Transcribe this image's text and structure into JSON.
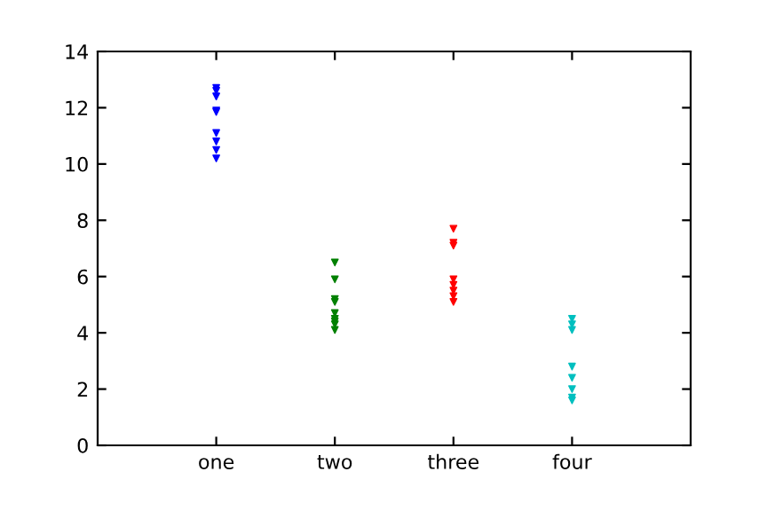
{
  "chart_data": {
    "type": "scatter",
    "categories": [
      "one",
      "two",
      "three",
      "four"
    ],
    "ylim": [
      0,
      14
    ],
    "yticks": [
      0,
      2,
      4,
      6,
      8,
      10,
      12,
      14
    ],
    "marker": "triangle",
    "grid": false,
    "series": [
      {
        "color": "#0000ff",
        "x": [
          "one",
          "one",
          "one",
          "one",
          "one",
          "one",
          "one",
          "one",
          "one"
        ],
        "values": [
          12.7,
          12.6,
          12.4,
          11.9,
          11.85,
          11.1,
          10.8,
          10.5,
          10.2
        ]
      },
      {
        "color": "#008000",
        "x": [
          "two",
          "two",
          "two",
          "two",
          "two",
          "two",
          "two",
          "two",
          "two"
        ],
        "values": [
          6.5,
          5.9,
          5.2,
          5.1,
          4.7,
          4.5,
          4.4,
          4.3,
          4.1
        ]
      },
      {
        "color": "#ff0000",
        "x": [
          "three",
          "three",
          "three",
          "three",
          "three",
          "three",
          "three",
          "three"
        ],
        "values": [
          7.7,
          7.2,
          7.1,
          5.9,
          5.7,
          5.5,
          5.3,
          5.1
        ]
      },
      {
        "color": "#00bfbf",
        "x": [
          "four",
          "four",
          "four",
          "four",
          "four",
          "four",
          "four",
          "four"
        ],
        "values": [
          4.5,
          4.3,
          4.1,
          2.8,
          2.4,
          2.0,
          1.7,
          1.6
        ]
      }
    ]
  }
}
